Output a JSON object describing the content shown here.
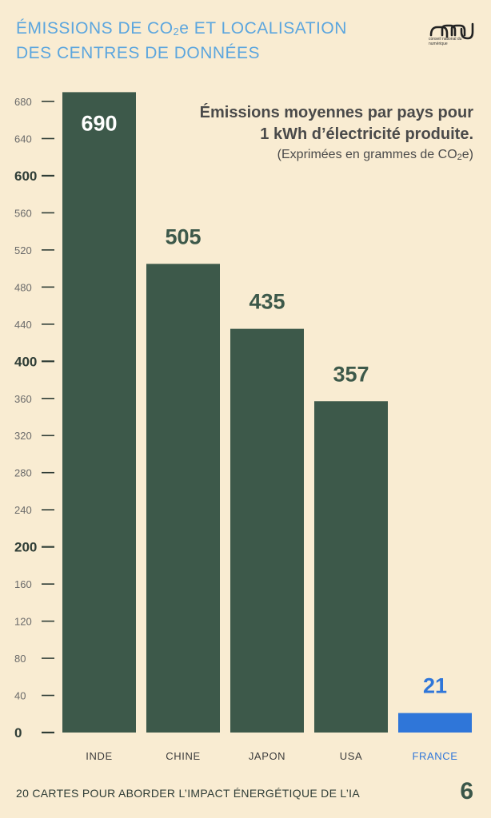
{
  "header": {
    "title_line1_pre": "ÉMISSIONS DE CO",
    "title_line1_sub": "2",
    "title_line1_post": "e ET LOCALISATION",
    "title_line2": "DES CENTRES DE DONNÉES",
    "logo_icon": "cnnum-logo-icon",
    "logo_text": "conseil national du numérique"
  },
  "annotation": {
    "line1": "Émissions moyennes par pays pour",
    "line2": "1 kWh d’électricité produite.",
    "line3_pre": "(Exprimées en grammes de CO",
    "line3_sub": "2",
    "line3_post": "e)"
  },
  "chart_data": {
    "type": "bar",
    "categories": [
      "INDE",
      "CHINE",
      "JAPON",
      "USA",
      "FRANCE"
    ],
    "values": [
      690,
      505,
      435,
      357,
      21
    ],
    "data_labels": [
      "690",
      "505",
      "435",
      "357",
      "21"
    ],
    "bar_colors": [
      "#3d594a",
      "#3d594a",
      "#3d594a",
      "#3d594a",
      "#2f76d9"
    ],
    "label_colors": [
      "#ffffff",
      "#3d594a",
      "#3d594a",
      "#3d594a",
      "#2f76d9"
    ],
    "category_label_colors": [
      "#3d3d3d",
      "#3d3d3d",
      "#3d3d3d",
      "#3d3d3d",
      "#2f76d9"
    ],
    "yticks": [
      0,
      40,
      80,
      120,
      160,
      200,
      240,
      280,
      320,
      360,
      400,
      440,
      480,
      520,
      560,
      600,
      640,
      680
    ],
    "major_ticks": [
      0,
      200,
      400,
      600
    ],
    "ylim": [
      0,
      690
    ],
    "grid": false
  },
  "footer": {
    "caption": "20 CARTES POUR ABORDER L’IMPACT ÉNERGÉTIQUE DE L’IA",
    "page_number": "6"
  }
}
